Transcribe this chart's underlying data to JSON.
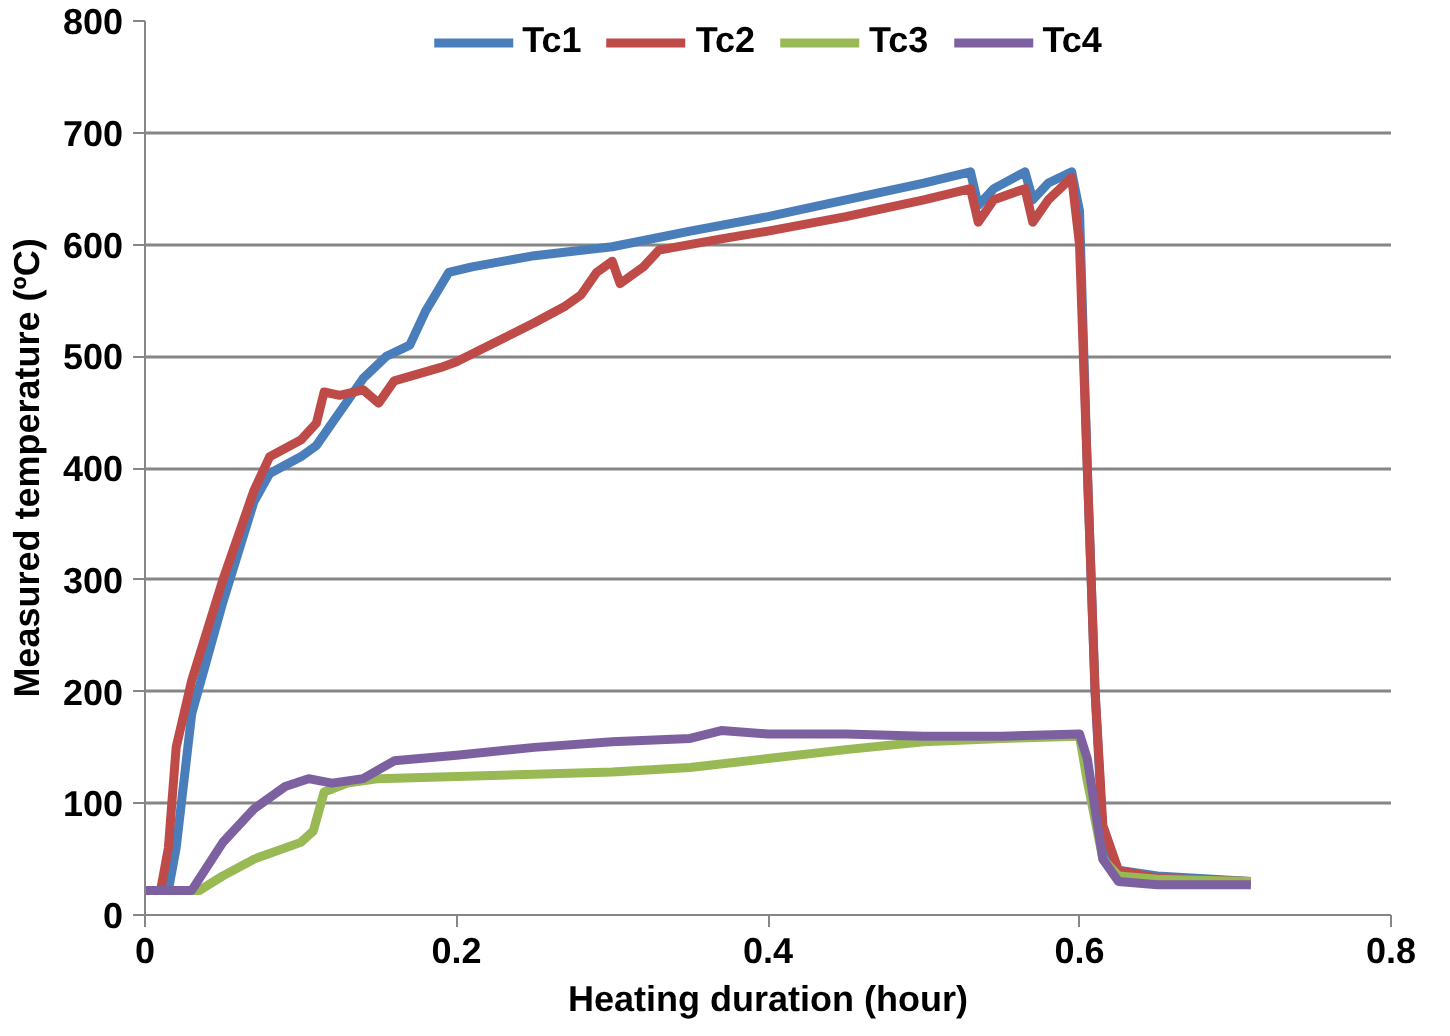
{
  "chart_data": {
    "type": "line",
    "xlabel": "Heating duration (hour)",
    "ylabel": "Measured temperature (ºC)",
    "xlim": [
      0,
      0.8
    ],
    "xticks": [
      0,
      0.2,
      0.4,
      0.6,
      0.8
    ],
    "ylim": [
      0,
      800
    ],
    "yticks": [
      0,
      100,
      200,
      300,
      400,
      500,
      600,
      700,
      800
    ],
    "grid": "y",
    "legend": "top",
    "marker": "none",
    "line_style": "solid",
    "series": [
      {
        "name": "Tc1",
        "color": "#4a7ebb",
        "x": [
          0,
          0.015,
          0.02,
          0.03,
          0.05,
          0.07,
          0.08,
          0.1,
          0.11,
          0.12,
          0.13,
          0.14,
          0.155,
          0.17,
          0.18,
          0.195,
          0.21,
          0.25,
          0.3,
          0.35,
          0.4,
          0.45,
          0.5,
          0.53,
          0.535,
          0.545,
          0.565,
          0.57,
          0.58,
          0.595,
          0.6,
          0.605,
          0.61,
          0.615,
          0.625,
          0.65,
          0.71
        ],
        "values": [
          22,
          22,
          60,
          180,
          280,
          370,
          395,
          410,
          420,
          440,
          460,
          480,
          500,
          510,
          540,
          575,
          580,
          590,
          598,
          612,
          625,
          640,
          655,
          665,
          635,
          650,
          665,
          640,
          655,
          665,
          630,
          400,
          200,
          70,
          40,
          35,
          30
        ]
      },
      {
        "name": "Tc2",
        "color": "#be4b48",
        "x": [
          0,
          0.01,
          0.015,
          0.02,
          0.03,
          0.05,
          0.07,
          0.08,
          0.1,
          0.11,
          0.115,
          0.125,
          0.14,
          0.15,
          0.16,
          0.19,
          0.2,
          0.25,
          0.27,
          0.28,
          0.29,
          0.3,
          0.305,
          0.32,
          0.33,
          0.37,
          0.4,
          0.45,
          0.5,
          0.53,
          0.535,
          0.545,
          0.565,
          0.57,
          0.58,
          0.595,
          0.6,
          0.605,
          0.61,
          0.615,
          0.625,
          0.65,
          0.71
        ],
        "values": [
          22,
          22,
          60,
          150,
          210,
          300,
          380,
          410,
          425,
          440,
          468,
          465,
          470,
          458,
          478,
          490,
          495,
          530,
          545,
          555,
          575,
          585,
          565,
          580,
          595,
          605,
          612,
          625,
          640,
          650,
          620,
          640,
          650,
          620,
          640,
          660,
          600,
          400,
          200,
          80,
          40,
          33,
          30
        ]
      },
      {
        "name": "Tc3",
        "color": "#98b954",
        "x": [
          0,
          0.035,
          0.05,
          0.07,
          0.1,
          0.108,
          0.115,
          0.13,
          0.15,
          0.2,
          0.3,
          0.35,
          0.4,
          0.45,
          0.5,
          0.55,
          0.6,
          0.605,
          0.615,
          0.625,
          0.65,
          0.71
        ],
        "values": [
          22,
          22,
          35,
          50,
          65,
          75,
          110,
          118,
          122,
          124,
          128,
          132,
          140,
          148,
          155,
          158,
          160,
          120,
          50,
          35,
          32,
          30
        ]
      },
      {
        "name": "Tc4",
        "color": "#7d60a0",
        "x": [
          0,
          0.03,
          0.05,
          0.07,
          0.09,
          0.105,
          0.12,
          0.14,
          0.16,
          0.2,
          0.25,
          0.3,
          0.35,
          0.37,
          0.4,
          0.45,
          0.5,
          0.55,
          0.6,
          0.605,
          0.615,
          0.625,
          0.65,
          0.71
        ],
        "values": [
          22,
          22,
          65,
          95,
          115,
          122,
          118,
          122,
          138,
          143,
          150,
          155,
          158,
          165,
          162,
          162,
          160,
          160,
          162,
          140,
          50,
          30,
          27,
          27
        ]
      }
    ]
  }
}
